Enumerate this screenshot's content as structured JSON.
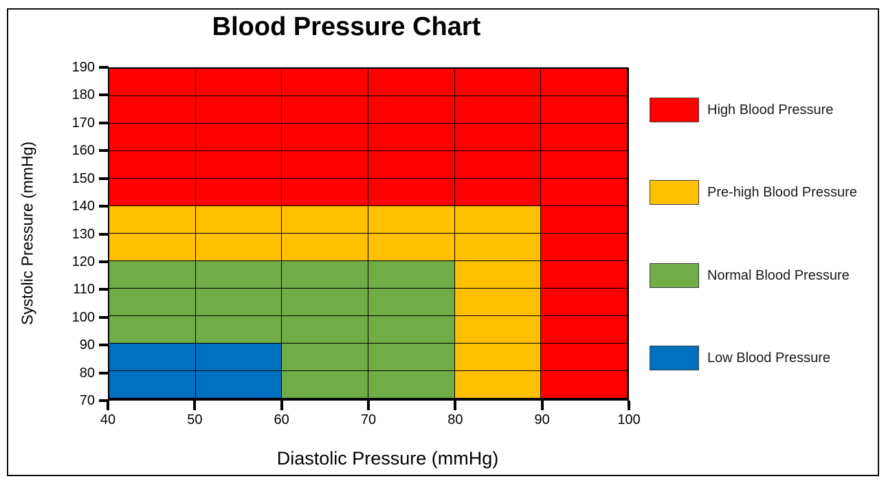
{
  "chart_data": {
    "type": "heatmap",
    "title": "Blood Pressure Chart",
    "xlabel": "Diastolic Pressure (mmHg)",
    "ylabel": "Systolic Pressure (mmHg)",
    "xlim": [
      40,
      100
    ],
    "ylim": [
      70,
      190
    ],
    "x_ticks": [
      40,
      50,
      60,
      70,
      80,
      90,
      100
    ],
    "y_ticks": [
      70,
      80,
      90,
      100,
      110,
      120,
      130,
      140,
      150,
      160,
      170,
      180,
      190
    ],
    "grid": true,
    "gridline_color": "#000000",
    "legend_position": "right",
    "zones": [
      {
        "name": "Low Blood Pressure",
        "color": "#0070C0",
        "diastolic_range": [
          40,
          60
        ],
        "systolic_range": [
          70,
          90
        ]
      },
      {
        "name": "Normal Blood Pressure",
        "color": "#70AD47",
        "diastolic_range": [
          40,
          80
        ],
        "systolic_range": [
          70,
          120
        ]
      },
      {
        "name": "Pre-high Blood Pressure",
        "color": "#FFC000",
        "diastolic_range": [
          40,
          90
        ],
        "systolic_range": [
          70,
          140
        ]
      },
      {
        "name": "High Blood Pressure",
        "color": "#FF0000",
        "diastolic_range": [
          40,
          100
        ],
        "systolic_range": [
          70,
          190
        ]
      }
    ],
    "legend": [
      {
        "label": "High Blood Pressure",
        "color": "#FF0000"
      },
      {
        "label": "Pre-high Blood Pressure",
        "color": "#FFC000"
      },
      {
        "label": "Normal Blood Pressure",
        "color": "#70AD47"
      },
      {
        "label": "Low Blood Pressure",
        "color": "#0070C0"
      }
    ]
  }
}
